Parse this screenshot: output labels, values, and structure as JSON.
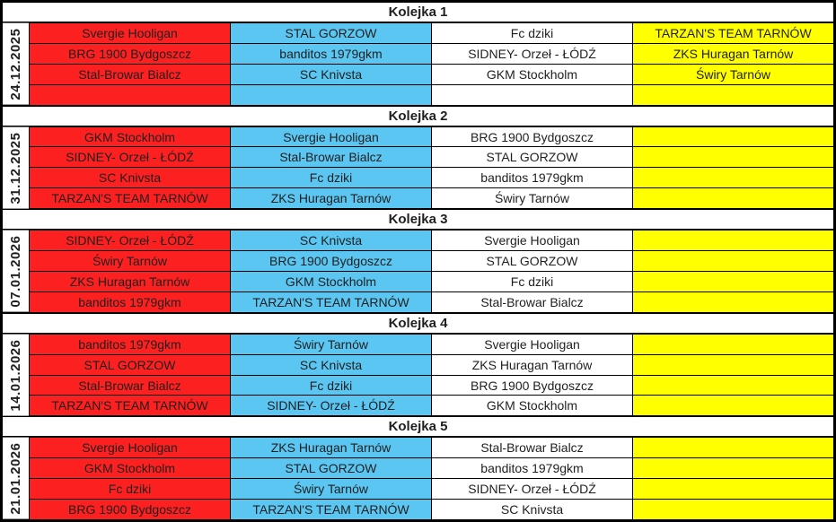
{
  "colors": {
    "red": "#FD2020",
    "blue": "#5BC6F2",
    "white": "#FFFFFF",
    "yellow": "#FFFF00",
    "text": "#1F1F1F",
    "border": "#000000"
  },
  "columns": [
    "red",
    "blue",
    "white",
    "yellow"
  ],
  "rounds": [
    {
      "title": "Kolejka 1",
      "date": "24.12.2025",
      "rows": [
        [
          "Svergie Hooligan",
          "STAL GORZOW",
          "Fc dziki",
          "TARZAN'S TEAM TARNÓW"
        ],
        [
          "BRG 1900 Bydgoszcz",
          "banditos 1979gkm",
          "SIDNEY- Orzeł - ŁÓDŹ",
          "ZKS Huragan Tarnów"
        ],
        [
          "Stal-Browar Bialcz",
          "SC Knivsta",
          "GKM Stockholm",
          "Świry Tarnów"
        ],
        [
          "",
          "",
          "",
          ""
        ]
      ]
    },
    {
      "title": "Kolejka 2",
      "date": "31.12.2025",
      "rows": [
        [
          "GKM Stockholm",
          "Svergie Hooligan",
          "BRG 1900 Bydgoszcz",
          ""
        ],
        [
          "SIDNEY- Orzeł - ŁÓDŹ",
          "Stal-Browar Bialcz",
          "STAL GORZOW",
          ""
        ],
        [
          "SC Knivsta",
          "Fc dziki",
          "banditos 1979gkm",
          ""
        ],
        [
          "TARZAN'S TEAM TARNÓW",
          "ZKS Huragan Tarnów",
          "Świry Tarnów",
          ""
        ]
      ]
    },
    {
      "title": "Kolejka 3",
      "date": "07.01.2026",
      "rows": [
        [
          "SIDNEY- Orzeł - ŁÓDŹ",
          "SC Knivsta",
          "Svergie Hooligan",
          ""
        ],
        [
          "Świry Tarnów",
          "BRG 1900 Bydgoszcz",
          "STAL GORZOW",
          ""
        ],
        [
          "ZKS Huragan Tarnów",
          "GKM Stockholm",
          "Fc dziki",
          ""
        ],
        [
          "banditos 1979gkm",
          "TARZAN'S TEAM TARNÓW",
          "Stal-Browar Bialcz",
          ""
        ]
      ]
    },
    {
      "title": "Kolejka 4",
      "date": "14.01.2026",
      "rows": [
        [
          "banditos 1979gkm",
          "Świry Tarnów",
          "Svergie Hooligan",
          ""
        ],
        [
          "STAL GORZOW",
          "SC Knivsta",
          "ZKS Huragan Tarnów",
          ""
        ],
        [
          "Stal-Browar Bialcz",
          "Fc dziki",
          "BRG 1900 Bydgoszcz",
          ""
        ],
        [
          "TARZAN'S TEAM TARNÓW",
          "SIDNEY- Orzeł - ŁÓDŹ",
          "GKM Stockholm",
          ""
        ]
      ]
    },
    {
      "title": "Kolejka 5",
      "date": "21.01.2026",
      "rows": [
        [
          "Svergie Hooligan",
          "ZKS Huragan Tarnów",
          "Stal-Browar Bialcz",
          ""
        ],
        [
          "GKM Stockholm",
          "STAL GORZOW",
          "banditos 1979gkm",
          ""
        ],
        [
          "Fc dziki",
          "Świry Tarnów",
          "SIDNEY- Orzeł - ŁÓDŹ",
          ""
        ],
        [
          "BRG 1900 Bydgoszcz",
          "TARZAN'S TEAM TARNÓW",
          "SC Knivsta",
          ""
        ]
      ]
    }
  ]
}
